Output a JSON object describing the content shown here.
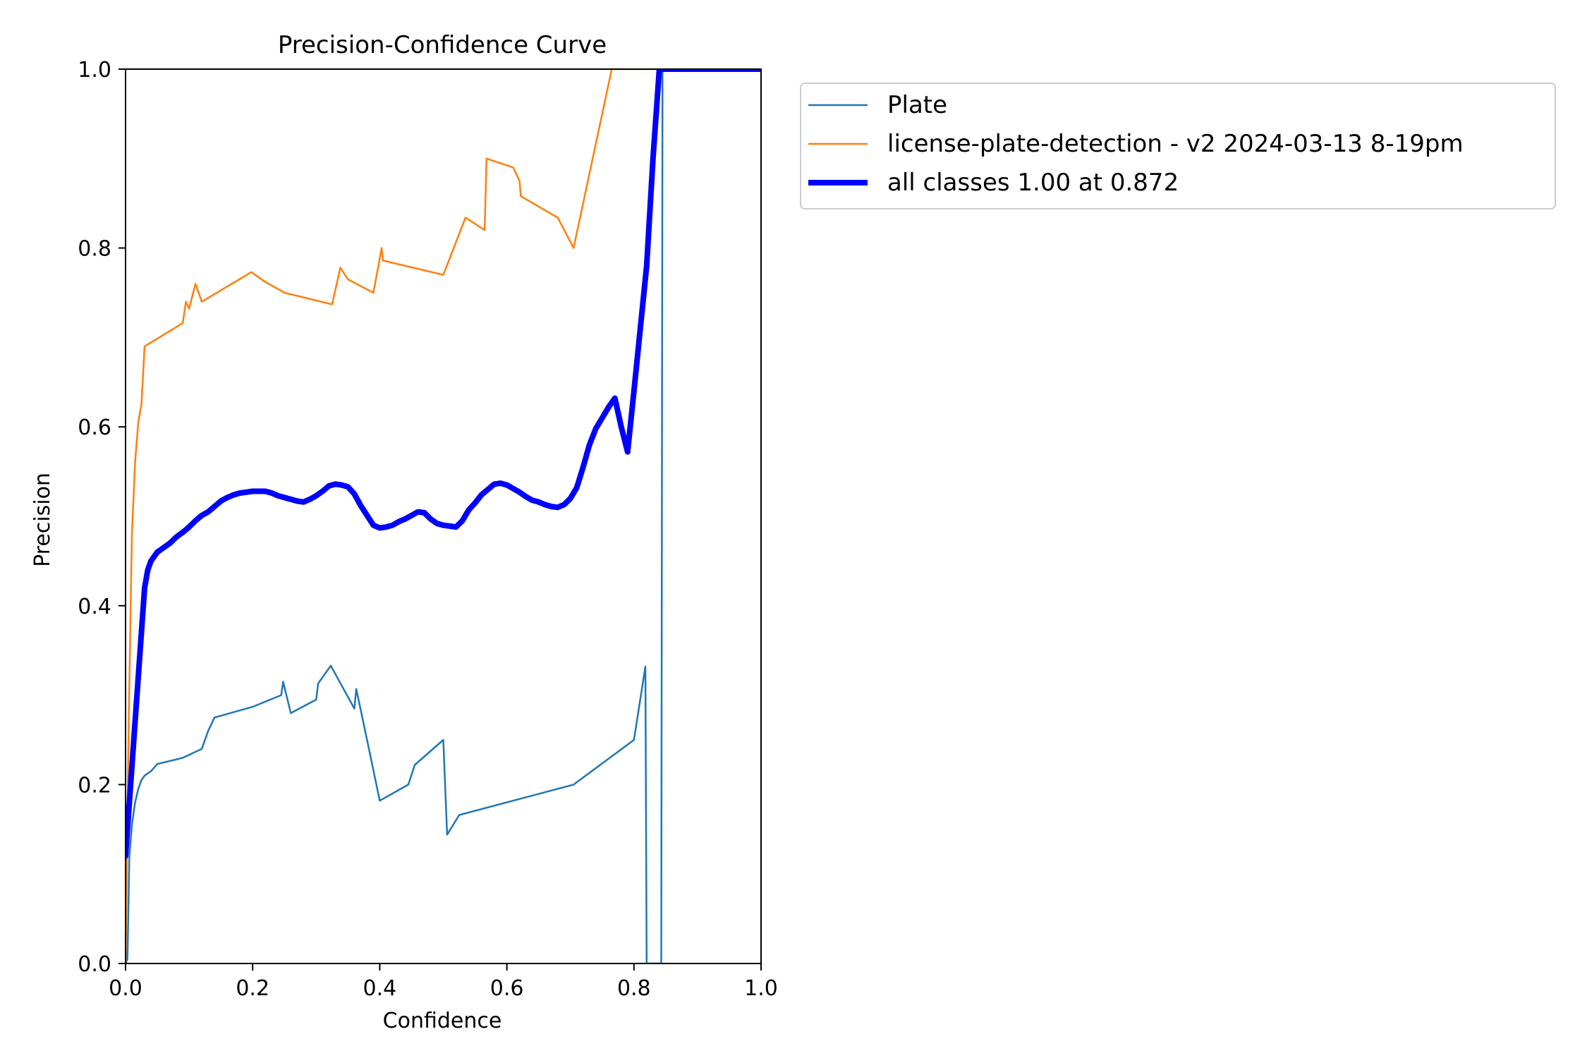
{
  "chart_data": {
    "type": "line",
    "title": "Precision-Confidence Curve",
    "xlabel": "Confidence",
    "ylabel": "Precision",
    "xlim": [
      0,
      1
    ],
    "ylim": [
      0,
      1
    ],
    "xticks": [
      "0.0",
      "0.2",
      "0.4",
      "0.6",
      "0.8",
      "1.0"
    ],
    "yticks": [
      "0.0",
      "0.2",
      "0.4",
      "0.6",
      "0.8",
      "1.0"
    ],
    "grid": false,
    "legend_position": "outside upper right",
    "series": [
      {
        "name": "Plate",
        "color": "#1f77b4",
        "emphasis": "thin",
        "x": [
          0.0,
          0.003,
          0.006,
          0.01,
          0.015,
          0.02,
          0.025,
          0.03,
          0.04,
          0.05,
          0.09,
          0.12,
          0.13,
          0.14,
          0.2,
          0.245,
          0.248,
          0.26,
          0.3,
          0.303,
          0.323,
          0.36,
          0.363,
          0.38,
          0.4,
          0.445,
          0.455,
          0.5,
          0.506,
          0.525,
          0.705,
          0.8,
          0.818,
          0.82,
          0.823,
          0.843,
          0.845,
          0.848,
          0.87,
          1.0
        ],
        "y": [
          0.0,
          0.005,
          0.12,
          0.155,
          0.18,
          0.195,
          0.205,
          0.21,
          0.215,
          0.223,
          0.23,
          0.24,
          0.26,
          0.275,
          0.287,
          0.3,
          0.315,
          0.28,
          0.295,
          0.313,
          0.333,
          0.285,
          0.307,
          0.25,
          0.182,
          0.2,
          0.222,
          0.25,
          0.144,
          0.166,
          0.2,
          0.25,
          0.332,
          0.0,
          0.0,
          0.0,
          1.0,
          1.0,
          1.0,
          1.0
        ]
      },
      {
        "name": "license-plate-detection - v2 2024-03-13 8-19pm",
        "color": "#ff7f0e",
        "emphasis": "thin",
        "x": [
          0.0,
          0.005,
          0.01,
          0.015,
          0.02,
          0.025,
          0.03,
          0.09,
          0.095,
          0.1,
          0.11,
          0.115,
          0.12,
          0.198,
          0.22,
          0.25,
          0.325,
          0.338,
          0.35,
          0.39,
          0.403,
          0.405,
          0.5,
          0.535,
          0.565,
          0.568,
          0.61,
          0.62,
          0.622,
          0.68,
          0.705,
          0.765,
          0.77,
          0.85,
          1.0
        ],
        "y": [
          0.0,
          0.27,
          0.48,
          0.56,
          0.605,
          0.625,
          0.69,
          0.716,
          0.74,
          0.732,
          0.76,
          0.75,
          0.74,
          0.773,
          0.762,
          0.75,
          0.737,
          0.778,
          0.765,
          0.75,
          0.8,
          0.786,
          0.77,
          0.834,
          0.82,
          0.9,
          0.89,
          0.875,
          0.858,
          0.834,
          0.8,
          1.0,
          1.0,
          1.0,
          1.0
        ]
      },
      {
        "name": "all classes 1.00 at 0.872",
        "color": "#0000ff",
        "emphasis": "thick",
        "x": [
          0.0,
          0.01,
          0.02,
          0.03,
          0.035,
          0.04,
          0.05,
          0.06,
          0.07,
          0.08,
          0.09,
          0.1,
          0.11,
          0.12,
          0.13,
          0.14,
          0.15,
          0.16,
          0.17,
          0.18,
          0.19,
          0.2,
          0.21,
          0.22,
          0.23,
          0.24,
          0.25,
          0.26,
          0.27,
          0.28,
          0.29,
          0.3,
          0.31,
          0.32,
          0.33,
          0.34,
          0.35,
          0.36,
          0.37,
          0.38,
          0.39,
          0.4,
          0.41,
          0.42,
          0.43,
          0.44,
          0.45,
          0.46,
          0.47,
          0.48,
          0.49,
          0.5,
          0.51,
          0.52,
          0.53,
          0.54,
          0.55,
          0.56,
          0.57,
          0.58,
          0.59,
          0.6,
          0.61,
          0.62,
          0.63,
          0.64,
          0.65,
          0.66,
          0.67,
          0.68,
          0.69,
          0.7,
          0.71,
          0.72,
          0.73,
          0.74,
          0.75,
          0.76,
          0.77,
          0.78,
          0.79,
          0.8,
          0.81,
          0.82,
          0.83,
          0.84,
          0.85,
          0.86,
          0.87,
          0.9,
          0.95,
          1.0
        ],
        "y": [
          0.12,
          0.22,
          0.32,
          0.42,
          0.44,
          0.45,
          0.46,
          0.465,
          0.47,
          0.477,
          0.482,
          0.488,
          0.495,
          0.501,
          0.505,
          0.511,
          0.517,
          0.521,
          0.524,
          0.526,
          0.527,
          0.528,
          0.528,
          0.528,
          0.526,
          0.523,
          0.521,
          0.519,
          0.517,
          0.516,
          0.519,
          0.523,
          0.528,
          0.534,
          0.536,
          0.535,
          0.533,
          0.525,
          0.512,
          0.501,
          0.49,
          0.487,
          0.488,
          0.49,
          0.494,
          0.497,
          0.501,
          0.505,
          0.504,
          0.497,
          0.492,
          0.49,
          0.489,
          0.488,
          0.495,
          0.507,
          0.515,
          0.524,
          0.53,
          0.536,
          0.537,
          0.535,
          0.531,
          0.527,
          0.522,
          0.518,
          0.516,
          0.513,
          0.511,
          0.51,
          0.513,
          0.52,
          0.532,
          0.555,
          0.58,
          0.598,
          0.61,
          0.622,
          0.632,
          0.6,
          0.572,
          0.64,
          0.71,
          0.78,
          0.9,
          1.0,
          1.0,
          1.0,
          1.0,
          1.0,
          1.0,
          1.0
        ]
      }
    ]
  }
}
